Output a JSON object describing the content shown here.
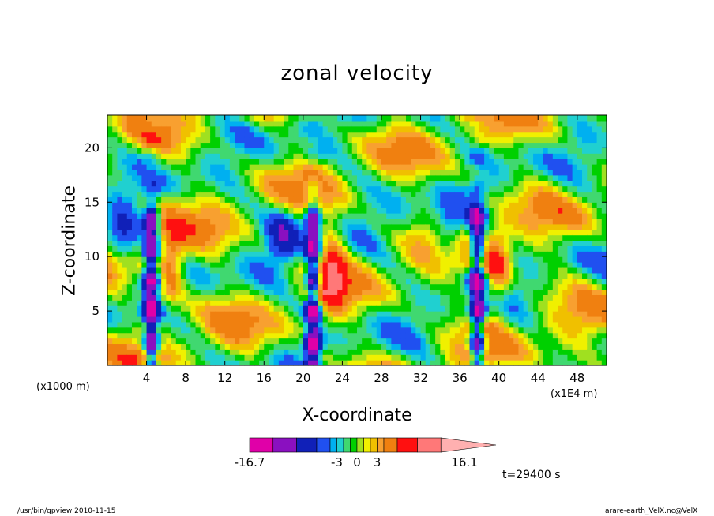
{
  "chart_data": {
    "type": "heatmap",
    "title": "zonal velocity",
    "xlabel": "X-coordinate",
    "ylabel": "Z-coordinate",
    "x_unit_label": "(x1000 m)",
    "x_unit_label_right": "(x1E4 m)",
    "xlim": [
      0,
      51
    ],
    "ylim": [
      0,
      23
    ],
    "xticks": [
      4,
      8,
      12,
      16,
      20,
      24,
      28,
      32,
      36,
      40,
      44,
      48
    ],
    "yticks": [
      5,
      10,
      15,
      20
    ],
    "columns": [
      4.5,
      21,
      37.8
    ],
    "zlim": [
      -16.7,
      16.1
    ],
    "colorbar": {
      "levels": [
        -16.7,
        -12.5,
        -9,
        -6,
        -4,
        -3,
        -2,
        -1,
        0,
        1,
        2,
        3,
        4,
        6,
        9,
        12.5,
        16.1
      ],
      "colors": [
        "#e000a8",
        "#8a10c0",
        "#1020b8",
        "#2050f0",
        "#00b0f0",
        "#20d0d0",
        "#40d870",
        "#00d000",
        "#a0e020",
        "#f0f000",
        "#f0c000",
        "#f8a030",
        "#f08010",
        "#ff1010",
        "#ff7878",
        "#ffb0b0"
      ],
      "tick_labels": [
        "-16.7",
        "-3",
        "0",
        "3",
        "16.1"
      ]
    },
    "time_label": "t=29400 s"
  },
  "footer": {
    "left": "/usr/bin/gpview   2010-11-15",
    "right": "arare-earth_VelX.nc@VelX"
  }
}
